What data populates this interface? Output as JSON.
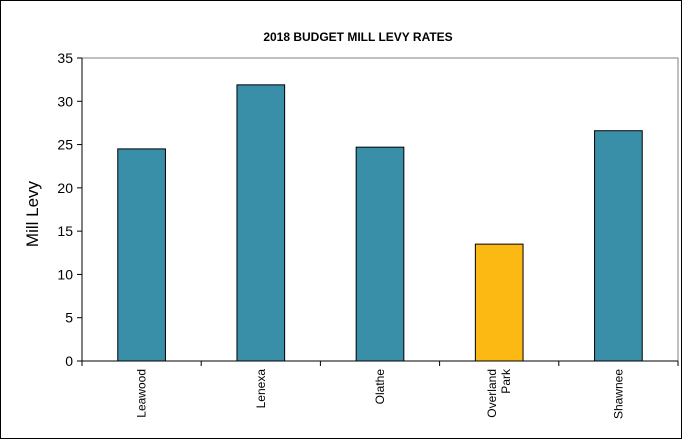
{
  "chart_data": {
    "type": "bar",
    "title": "2018 BUDGET MILL LEVY RATES",
    "xlabel": "",
    "ylabel": "Mill Levy",
    "ylim": [
      0,
      35
    ],
    "yticks": [
      0,
      5,
      10,
      15,
      20,
      25,
      30,
      35
    ],
    "grid": false,
    "legend": "none",
    "categories": [
      "Leawood",
      "Lenexa",
      "Olathe",
      "Overland Park",
      "Shawnee"
    ],
    "category_lines": [
      [
        "Leawood"
      ],
      [
        "Lenexa"
      ],
      [
        "Olathe"
      ],
      [
        "Overland",
        "Park"
      ],
      [
        "Shawnee"
      ]
    ],
    "values": [
      24.5,
      31.9,
      24.7,
      13.5,
      26.6
    ],
    "colors": [
      "#3a8fa8",
      "#3a8fa8",
      "#3a8fa8",
      "#fdb913",
      "#3a8fa8"
    ]
  }
}
